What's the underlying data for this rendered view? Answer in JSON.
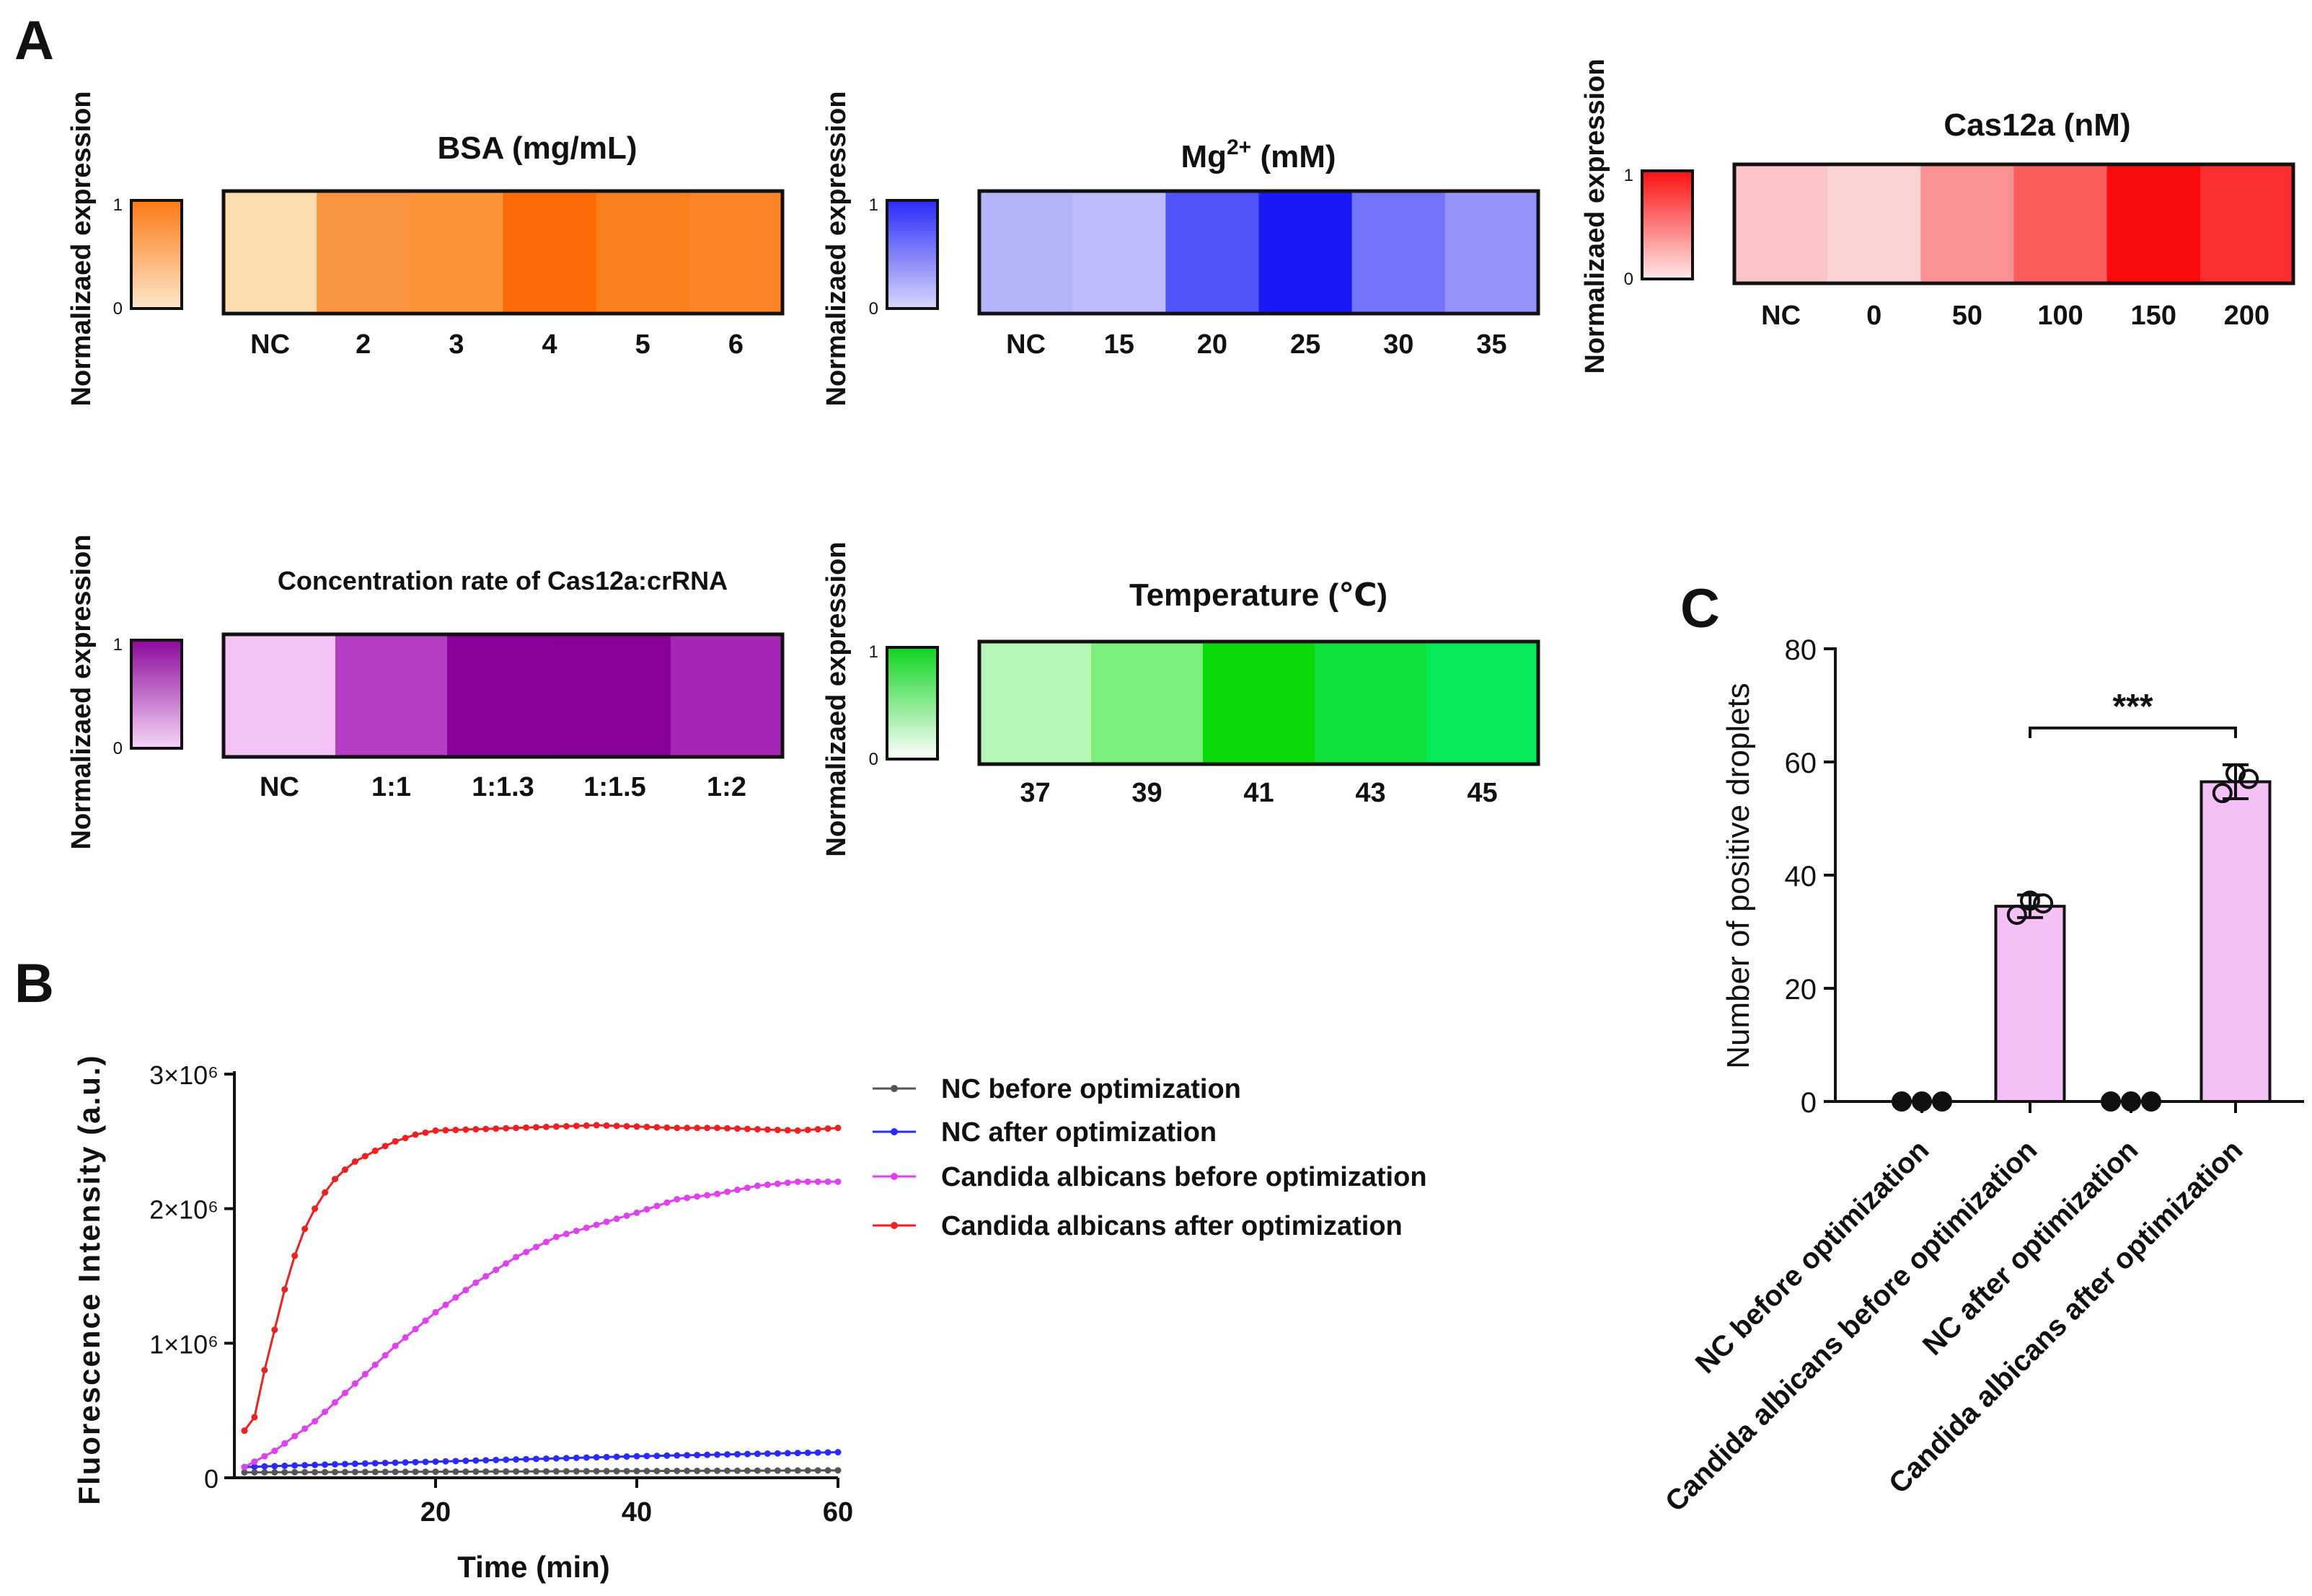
{
  "panel_labels": {
    "a": "A",
    "b": "B",
    "c": "C"
  },
  "chart_data": [
    {
      "id": "bsa",
      "type": "heatmap",
      "title": "BSA (mg/mL)",
      "colorbar_label": "Normalizaed expression",
      "colorbar_ticks": [
        "0",
        "1"
      ],
      "categories": [
        "NC",
        "2",
        "3",
        "4",
        "5",
        "6"
      ],
      "cell_colors": [
        "#fddcb2",
        "#fb9440",
        "#fb9337",
        "#fc6a05",
        "#fb7f1a",
        "#fb8526"
      ],
      "colorbar_colors": [
        "#fee7cc",
        "#fb7a14"
      ]
    },
    {
      "id": "mg",
      "type": "heatmap",
      "title": "Mg",
      "title_superscript": "2+",
      "title_suffix": " (mM)",
      "colorbar_label": "Normalizaed expression",
      "colorbar_ticks": [
        "0",
        "1"
      ],
      "categories": [
        "NC",
        "15",
        "20",
        "25",
        "30",
        "35"
      ],
      "cell_colors": [
        "#b4b4fb",
        "#bcbcfc",
        "#5353fa",
        "#1a1af9",
        "#7474fa",
        "#9494fb"
      ],
      "colorbar_colors": [
        "#d8d8fd",
        "#2a2af8"
      ]
    },
    {
      "id": "cas12a",
      "type": "heatmap",
      "title": "Cas12a (nM)",
      "colorbar_label": "Normalizaed expression",
      "colorbar_ticks": [
        "0",
        "1"
      ],
      "categories": [
        "NC",
        "0",
        "50",
        "100",
        "150",
        "200"
      ],
      "cell_colors": [
        "#fcc5c5",
        "#fcd3d3",
        "#fb9292",
        "#fb5d5d",
        "#fa0a0a",
        "#fb2f2f"
      ],
      "colorbar_colors": [
        "#fee8e8",
        "#fb1010"
      ]
    },
    {
      "id": "ratio",
      "type": "heatmap",
      "title": "Concentration rate of Cas12a:crRNA",
      "colorbar_label": "Normalizaed expression",
      "colorbar_ticks": [
        "0",
        "1"
      ],
      "categories": [
        "NC",
        "1:1",
        "1:1.3",
        "1:1.5",
        "1:2"
      ],
      "cell_colors": [
        "#f3c3f3",
        "#b43dc3",
        "#8b009a",
        "#8a0099",
        "#a726b5"
      ],
      "colorbar_colors": [
        "#f7d6f7",
        "#8c0a9a"
      ]
    },
    {
      "id": "temp",
      "type": "heatmap",
      "title": "Temperature (℃)",
      "colorbar_label": "Normalizaed expression",
      "colorbar_ticks": [
        "0",
        "1"
      ],
      "categories": [
        "37",
        "39",
        "41",
        "43",
        "45"
      ],
      "cell_colors": [
        "#b5f5b5",
        "#7af07a",
        "#09db09",
        "#10e13c",
        "#05ea58"
      ],
      "colorbar_colors": [
        "#ffffff",
        "#10d420"
      ]
    },
    {
      "id": "kinetics",
      "type": "line",
      "xlabel": "Time (min)",
      "ylabel": "Fluorescence Intensity (a.u.)",
      "xlim": [
        0,
        60
      ],
      "ylim": [
        0,
        3000000
      ],
      "xticks": [
        "20",
        "40",
        "60"
      ],
      "xtick_values": [
        20,
        40,
        60
      ],
      "yticks": [
        "0",
        "1×10⁶",
        "2×10⁶",
        "3×10⁶"
      ],
      "ytick_values": [
        0,
        1000000,
        2000000,
        3000000
      ],
      "series": [
        {
          "name": "NC before optimization",
          "color": "#555555",
          "points": [
            [
              1,
              40000
            ],
            [
              20,
              45000
            ],
            [
              40,
              50000
            ],
            [
              60,
              55000
            ]
          ]
        },
        {
          "name": "NC after  optimization",
          "color": "#2a2aff",
          "points": [
            [
              1,
              80000
            ],
            [
              10,
              100000
            ],
            [
              20,
              120000
            ],
            [
              30,
              140000
            ],
            [
              40,
              160000
            ],
            [
              50,
              175000
            ],
            [
              60,
              190000
            ]
          ]
        },
        {
          "name": "Candida albicans  before  optimization",
          "color": "#e040f0",
          "points": [
            [
              1,
              80000
            ],
            [
              4,
              200000
            ],
            [
              8,
              420000
            ],
            [
              12,
              700000
            ],
            [
              16,
              980000
            ],
            [
              20,
              1230000
            ],
            [
              24,
              1450000
            ],
            [
              28,
              1640000
            ],
            [
              32,
              1790000
            ],
            [
              36,
              1880000
            ],
            [
              40,
              1970000
            ],
            [
              44,
              2070000
            ],
            [
              48,
              2110000
            ],
            [
              52,
              2170000
            ],
            [
              56,
              2200000
            ],
            [
              60,
              2200000
            ]
          ]
        },
        {
          "name": "Candida albicans  after  optimization",
          "color": "#f02020",
          "points": [
            [
              1,
              350000
            ],
            [
              2,
              450000
            ],
            [
              3,
              800000
            ],
            [
              4,
              1100000
            ],
            [
              5,
              1400000
            ],
            [
              6,
              1650000
            ],
            [
              7,
              1850000
            ],
            [
              8,
              2000000
            ],
            [
              9,
              2120000
            ],
            [
              10,
              2220000
            ],
            [
              11,
              2290000
            ],
            [
              12,
              2350000
            ],
            [
              14,
              2430000
            ],
            [
              16,
              2500000
            ],
            [
              18,
              2550000
            ],
            [
              20,
              2580000
            ],
            [
              24,
              2590000
            ],
            [
              28,
              2600000
            ],
            [
              32,
              2610000
            ],
            [
              36,
              2620000
            ],
            [
              40,
              2610000
            ],
            [
              44,
              2600000
            ],
            [
              48,
              2600000
            ],
            [
              52,
              2590000
            ],
            [
              56,
              2580000
            ],
            [
              60,
              2600000
            ]
          ]
        }
      ]
    },
    {
      "id": "droplets",
      "type": "bar",
      "ylabel": "Number of positive droplets",
      "ylim": [
        0,
        80
      ],
      "yticks": [
        "0",
        "20",
        "40",
        "60",
        "80"
      ],
      "ytick_values": [
        0,
        20,
        40,
        60,
        80
      ],
      "categories": [
        "NC before optimization",
        "Candida albicans before optimization",
        "NC after optimization",
        "Candida albicans after optimization"
      ],
      "values": [
        0,
        34.5,
        0,
        56.5
      ],
      "errors": [
        0,
        2,
        0,
        3
      ],
      "replicates": [
        [
          0,
          0,
          0
        ],
        [
          33,
          35,
          35.5
        ],
        [
          0,
          0,
          0
        ],
        [
          54.5,
          57,
          58
        ]
      ],
      "bar_color": "#f5c0f5",
      "significance": {
        "label": "***",
        "between": [
          1,
          3
        ]
      }
    }
  ]
}
